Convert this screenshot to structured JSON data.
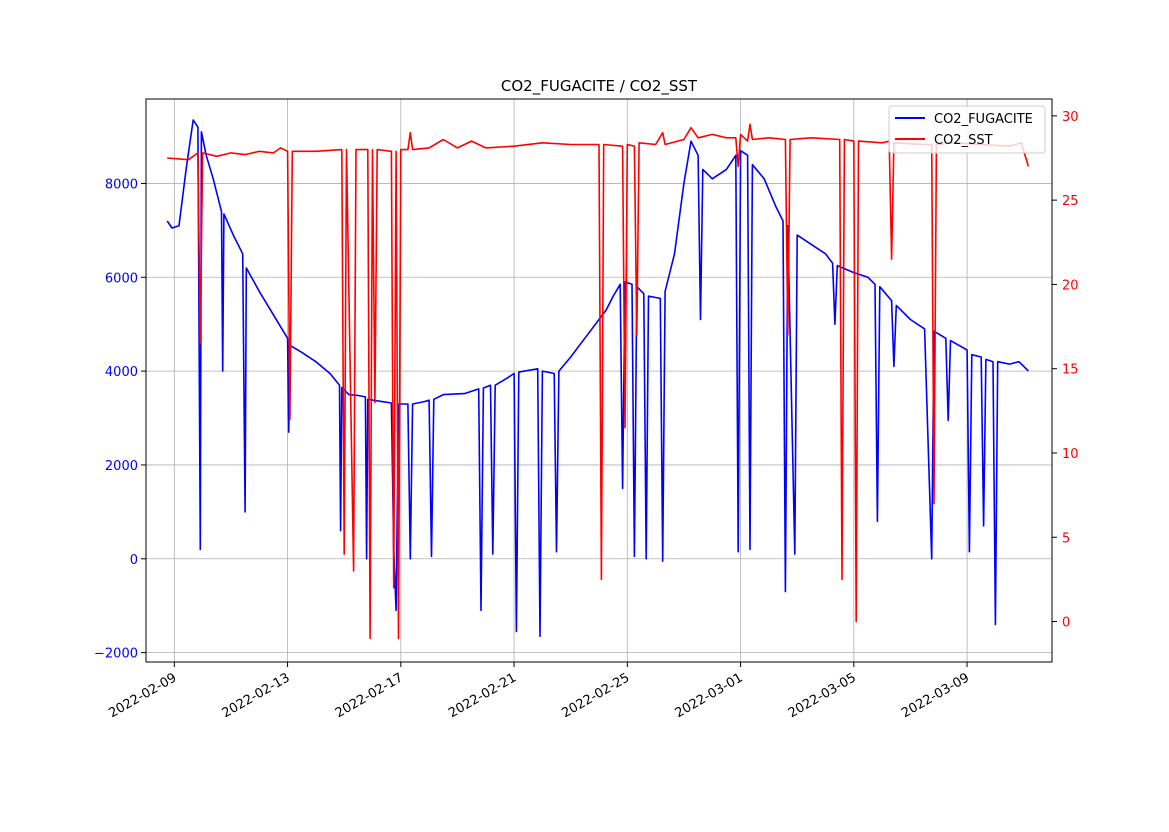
{
  "chart_data": {
    "type": "line",
    "title": "CO2_FUGACITE / CO2_SST",
    "xlabel": "",
    "ylabel": "",
    "y2label": "",
    "x_range": [
      "2022-02-08",
      "2022-03-12"
    ],
    "x_ticks": [
      "2022-02-09",
      "2022-02-13",
      "2022-02-17",
      "2022-02-21",
      "2022-02-25",
      "2022-03-01",
      "2022-03-05",
      "2022-03-09"
    ],
    "y_range": [
      -2200,
      9800
    ],
    "y_ticks": [
      "−2000",
      "0",
      "2000",
      "4000",
      "6000",
      "8000"
    ],
    "y2_range": [
      -2.4,
      31.0
    ],
    "y2_ticks": [
      "0",
      "5",
      "10",
      "15",
      "20",
      "25",
      "30"
    ],
    "grid": true,
    "legend_position": "top-right",
    "colors": {
      "CO2_FUGACITE": "#0000ff",
      "CO2_SST": "#ff0000"
    },
    "series": [
      {
        "name": "CO2_FUGACITE",
        "axis": "left",
        "points": [
          [
            "2022-02-08T18:00",
            7200
          ],
          [
            "2022-02-08T22:00",
            7050
          ],
          [
            "2022-02-09T04:00",
            7100
          ],
          [
            "2022-02-09T10:00",
            8300
          ],
          [
            "2022-02-09T14:00",
            9000
          ],
          [
            "2022-02-09T16:00",
            9350
          ],
          [
            "2022-02-09T20:00",
            9200
          ],
          [
            "2022-02-09T22:00",
            200
          ],
          [
            "2022-02-09T23:00",
            9100
          ],
          [
            "2022-02-10T03:00",
            8600
          ],
          [
            "2022-02-10T09:00",
            8100
          ],
          [
            "2022-02-10T16:00",
            7400
          ],
          [
            "2022-02-10T17:00",
            4000
          ],
          [
            "2022-02-10T18:00",
            7350
          ],
          [
            "2022-02-11T02:00",
            6900
          ],
          [
            "2022-02-11T10:00",
            6500
          ],
          [
            "2022-02-11T12:00",
            1000
          ],
          [
            "2022-02-11T13:00",
            6200
          ],
          [
            "2022-02-12T00:00",
            5700
          ],
          [
            "2022-02-12T12:00",
            5200
          ],
          [
            "2022-02-13T00:00",
            4700
          ],
          [
            "2022-02-13T01:00",
            2700
          ],
          [
            "2022-02-13T02:00",
            4550
          ],
          [
            "2022-02-13T12:00",
            4400
          ],
          [
            "2022-02-14T00:00",
            4200
          ],
          [
            "2022-02-14T12:00",
            3950
          ],
          [
            "2022-02-14T20:00",
            3700
          ],
          [
            "2022-02-14T21:00",
            600
          ],
          [
            "2022-02-14T22:00",
            3650
          ],
          [
            "2022-02-15T04:00",
            3500
          ],
          [
            "2022-02-15T12:00",
            3480
          ],
          [
            "2022-02-15T18:00",
            3450
          ],
          [
            "2022-02-15T19:00",
            0
          ],
          [
            "2022-02-15T20:00",
            3400
          ],
          [
            "2022-02-16T08:00",
            3350
          ],
          [
            "2022-02-16T16:00",
            3320
          ],
          [
            "2022-02-16T18:00",
            200
          ],
          [
            "2022-02-16T20:00",
            -1100
          ],
          [
            "2022-02-16T22:00",
            3300
          ],
          [
            "2022-02-17T06:00",
            3300
          ],
          [
            "2022-02-17T08:00",
            0
          ],
          [
            "2022-02-17T10:00",
            3300
          ],
          [
            "2022-02-17T20:00",
            3350
          ],
          [
            "2022-02-18T00:00",
            3380
          ],
          [
            "2022-02-18T02:00",
            50
          ],
          [
            "2022-02-18T04:00",
            3400
          ],
          [
            "2022-02-18T12:00",
            3500
          ],
          [
            "2022-02-19T06:00",
            3520
          ],
          [
            "2022-02-19T18:00",
            3620
          ],
          [
            "2022-02-19T20:00",
            -1100
          ],
          [
            "2022-02-19T22:00",
            3640
          ],
          [
            "2022-02-20T04:00",
            3700
          ],
          [
            "2022-02-20T06:00",
            100
          ],
          [
            "2022-02-20T08:00",
            3700
          ],
          [
            "2022-02-20T18:00",
            3850
          ],
          [
            "2022-02-21T00:00",
            3950
          ],
          [
            "2022-02-21T02:00",
            -1550
          ],
          [
            "2022-02-21T04:00",
            3980
          ],
          [
            "2022-02-21T20:00",
            4050
          ],
          [
            "2022-02-21T22:00",
            -1650
          ],
          [
            "2022-02-22T00:00",
            4000
          ],
          [
            "2022-02-22T10:00",
            3950
          ],
          [
            "2022-02-22T12:00",
            150
          ],
          [
            "2022-02-22T14:00",
            4000
          ],
          [
            "2022-02-23T00:00",
            4300
          ],
          [
            "2022-02-23T12:00",
            4700
          ],
          [
            "2022-02-24T00:00",
            5100
          ],
          [
            "2022-02-24T06:00",
            5300
          ],
          [
            "2022-02-24T12:00",
            5600
          ],
          [
            "2022-02-24T18:00",
            5850
          ],
          [
            "2022-02-24T20:00",
            1500
          ],
          [
            "2022-02-24T22:00",
            5900
          ],
          [
            "2022-02-25T04:00",
            5850
          ],
          [
            "2022-02-25T06:00",
            50
          ],
          [
            "2022-02-25T08:00",
            5800
          ],
          [
            "2022-02-25T14:00",
            5650
          ],
          [
            "2022-02-25T16:00",
            0
          ],
          [
            "2022-02-25T18:00",
            5600
          ],
          [
            "2022-02-26T04:00",
            5550
          ],
          [
            "2022-02-26T06:00",
            -50
          ],
          [
            "2022-02-26T08:00",
            5700
          ],
          [
            "2022-02-26T16:00",
            6500
          ],
          [
            "2022-02-27T00:00",
            8000
          ],
          [
            "2022-02-27T06:00",
            8900
          ],
          [
            "2022-02-27T12:00",
            8600
          ],
          [
            "2022-02-27T14:00",
            5100
          ],
          [
            "2022-02-27T16:00",
            8300
          ],
          [
            "2022-02-28T00:00",
            8100
          ],
          [
            "2022-02-28T12:00",
            8300
          ],
          [
            "2022-02-28T20:00",
            8600
          ],
          [
            "2022-02-28T22:00",
            150
          ],
          [
            "2022-03-01T00:00",
            8700
          ],
          [
            "2022-03-01T06:00",
            8600
          ],
          [
            "2022-03-01T08:00",
            200
          ],
          [
            "2022-03-01T10:00",
            8400
          ],
          [
            "2022-03-01T20:00",
            8100
          ],
          [
            "2022-03-02T06:00",
            7500
          ],
          [
            "2022-03-02T12:00",
            7200
          ],
          [
            "2022-03-02T14:00",
            -700
          ],
          [
            "2022-03-02T16:00",
            7100
          ],
          [
            "2022-03-02T22:00",
            100
          ],
          [
            "2022-03-03T00:00",
            6900
          ],
          [
            "2022-03-03T12:00",
            6700
          ],
          [
            "2022-03-04T00:00",
            6500
          ],
          [
            "2022-03-04T06:00",
            6300
          ],
          [
            "2022-03-04T08:00",
            5000
          ],
          [
            "2022-03-04T10:00",
            6250
          ],
          [
            "2022-03-05T00:00",
            6100
          ],
          [
            "2022-03-05T12:00",
            6000
          ],
          [
            "2022-03-05T18:00",
            5850
          ],
          [
            "2022-03-05T20:00",
            800
          ],
          [
            "2022-03-05T22:00",
            5800
          ],
          [
            "2022-03-06T08:00",
            5500
          ],
          [
            "2022-03-06T10:00",
            4100
          ],
          [
            "2022-03-06T12:00",
            5400
          ],
          [
            "2022-03-07T00:00",
            5100
          ],
          [
            "2022-03-07T12:00",
            4900
          ],
          [
            "2022-03-07T18:00",
            0
          ],
          [
            "2022-03-07T20:00",
            4850
          ],
          [
            "2022-03-08T06:00",
            4700
          ],
          [
            "2022-03-08T08:00",
            2950
          ],
          [
            "2022-03-08T10:00",
            4650
          ],
          [
            "2022-03-09T00:00",
            4450
          ],
          [
            "2022-03-09T02:00",
            150
          ],
          [
            "2022-03-09T04:00",
            4350
          ],
          [
            "2022-03-09T12:00",
            4300
          ],
          [
            "2022-03-09T14:00",
            700
          ],
          [
            "2022-03-09T16:00",
            4250
          ],
          [
            "2022-03-09T22:00",
            4200
          ],
          [
            "2022-03-10T00:00",
            -1400
          ],
          [
            "2022-03-10T02:00",
            4200
          ],
          [
            "2022-03-10T12:00",
            4150
          ],
          [
            "2022-03-10T20:00",
            4200
          ],
          [
            "2022-03-11T04:00",
            4000
          ]
        ]
      },
      {
        "name": "CO2_SST",
        "axis": "right",
        "points": [
          [
            "2022-02-08T18:00",
            27.5
          ],
          [
            "2022-02-09T12:00",
            27.4
          ],
          [
            "2022-02-09T20:00",
            27.8
          ],
          [
            "2022-02-09T22:00",
            16.5
          ],
          [
            "2022-02-10T00:00",
            27.8
          ],
          [
            "2022-02-10T12:00",
            27.6
          ],
          [
            "2022-02-11T00:00",
            27.8
          ],
          [
            "2022-02-11T12:00",
            27.7
          ],
          [
            "2022-02-12T00:00",
            27.9
          ],
          [
            "2022-02-12T12:00",
            27.8
          ],
          [
            "2022-02-12T18:00",
            28.1
          ],
          [
            "2022-02-13T00:00",
            27.9
          ],
          [
            "2022-02-13T02:00",
            12.0
          ],
          [
            "2022-02-13T04:00",
            27.9
          ],
          [
            "2022-02-14T00:00",
            27.9
          ],
          [
            "2022-02-14T22:00",
            28.0
          ],
          [
            "2022-02-15T00:00",
            4.0
          ],
          [
            "2022-02-15T02:00",
            28.0
          ],
          [
            "2022-02-15T08:00",
            3.0
          ],
          [
            "2022-02-15T10:00",
            28.0
          ],
          [
            "2022-02-15T20:00",
            28.0
          ],
          [
            "2022-02-15T22:00",
            -1.0
          ],
          [
            "2022-02-16T00:00",
            28.0
          ],
          [
            "2022-02-16T02:00",
            13.0
          ],
          [
            "2022-02-16T04:00",
            28.0
          ],
          [
            "2022-02-16T16:00",
            27.9
          ],
          [
            "2022-02-16T18:00",
            2.0
          ],
          [
            "2022-02-16T20:00",
            27.9
          ],
          [
            "2022-02-16T22:00",
            -1.0
          ],
          [
            "2022-02-17T00:00",
            28.0
          ],
          [
            "2022-02-17T06:00",
            28.0
          ],
          [
            "2022-02-17T08:00",
            29.0
          ],
          [
            "2022-02-17T10:00",
            28.0
          ],
          [
            "2022-02-18T00:00",
            28.1
          ],
          [
            "2022-02-18T12:00",
            28.6
          ],
          [
            "2022-02-19T00:00",
            28.1
          ],
          [
            "2022-02-19T12:00",
            28.5
          ],
          [
            "2022-02-20T00:00",
            28.1
          ],
          [
            "2022-02-21T00:00",
            28.2
          ],
          [
            "2022-02-22T00:00",
            28.4
          ],
          [
            "2022-02-23T00:00",
            28.3
          ],
          [
            "2022-02-24T00:00",
            28.3
          ],
          [
            "2022-02-24T02:00",
            2.5
          ],
          [
            "2022-02-24T04:00",
            28.3
          ],
          [
            "2022-02-24T20:00",
            28.2
          ],
          [
            "2022-02-24T22:00",
            11.5
          ],
          [
            "2022-02-25T00:00",
            28.3
          ],
          [
            "2022-02-25T06:00",
            28.2
          ],
          [
            "2022-02-25T08:00",
            17.0
          ],
          [
            "2022-02-25T10:00",
            28.4
          ],
          [
            "2022-02-26T00:00",
            28.3
          ],
          [
            "2022-02-26T06:00",
            29.0
          ],
          [
            "2022-02-26T08:00",
            28.3
          ],
          [
            "2022-02-27T00:00",
            28.6
          ],
          [
            "2022-02-27T06:00",
            29.3
          ],
          [
            "2022-02-27T12:00",
            28.7
          ],
          [
            "2022-02-28T00:00",
            28.9
          ],
          [
            "2022-02-28T12:00",
            28.7
          ],
          [
            "2022-02-28T20:00",
            28.7
          ],
          [
            "2022-02-28T22:00",
            27.0
          ],
          [
            "2022-03-01T00:00",
            28.9
          ],
          [
            "2022-03-01T06:00",
            28.5
          ],
          [
            "2022-03-01T08:00",
            29.5
          ],
          [
            "2022-03-01T10:00",
            28.6
          ],
          [
            "2022-03-02T00:00",
            28.7
          ],
          [
            "2022-03-02T14:00",
            28.6
          ],
          [
            "2022-03-02T16:00",
            17.0
          ],
          [
            "2022-03-02T18:00",
            28.6
          ],
          [
            "2022-03-03T12:00",
            28.7
          ],
          [
            "2022-03-04T12:00",
            28.6
          ],
          [
            "2022-03-04T14:00",
            2.5
          ],
          [
            "2022-03-04T16:00",
            28.6
          ],
          [
            "2022-03-05T00:00",
            28.5
          ],
          [
            "2022-03-05T02:00",
            0.0
          ],
          [
            "2022-03-05T04:00",
            28.5
          ],
          [
            "2022-03-06T00:00",
            28.4
          ],
          [
            "2022-03-06T06:00",
            28.5
          ],
          [
            "2022-03-06T08:00",
            21.5
          ],
          [
            "2022-03-06T10:00",
            28.4
          ],
          [
            "2022-03-07T12:00",
            28.3
          ],
          [
            "2022-03-07T18:00",
            28.3
          ],
          [
            "2022-03-07T20:00",
            7.0
          ],
          [
            "2022-03-07T22:00",
            28.3
          ],
          [
            "2022-03-08T12:00",
            28.4
          ],
          [
            "2022-03-09T12:00",
            28.3
          ],
          [
            "2022-03-10T12:00",
            28.2
          ],
          [
            "2022-03-10T22:00",
            28.4
          ],
          [
            "2022-03-11T04:00",
            27.0
          ]
        ]
      }
    ]
  }
}
